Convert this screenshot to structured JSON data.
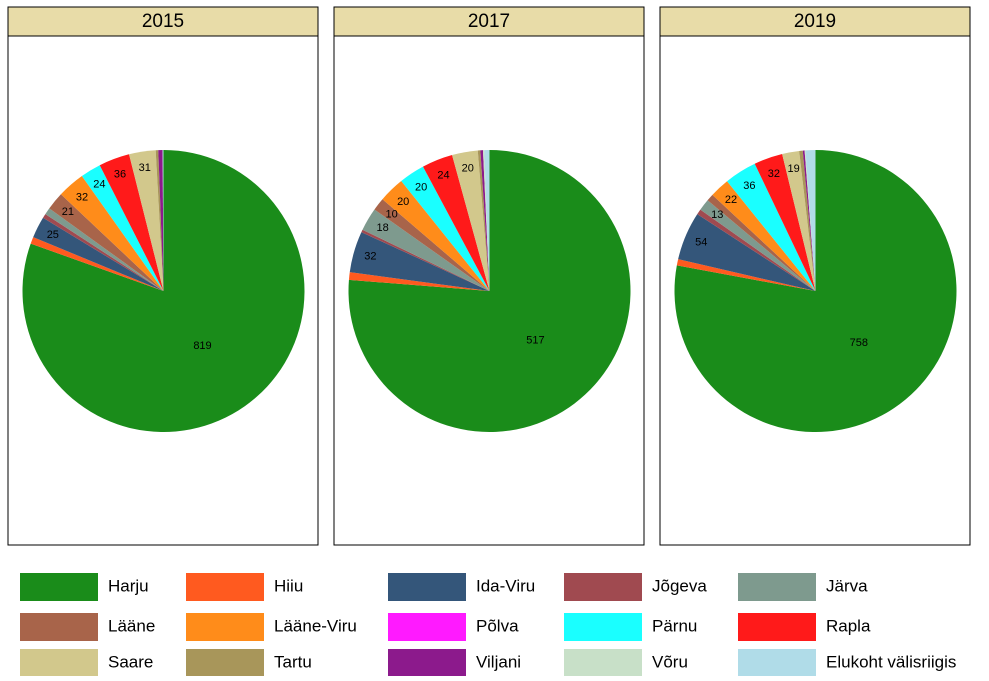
{
  "chart_data": [
    {
      "type": "pie",
      "title": "2015",
      "categories": [
        "Harju",
        "Hiiu",
        "Ida-Viru",
        "Jõgeva",
        "Järva",
        "Lääne",
        "Lääne-Viru",
        "Põlva",
        "Pärnu",
        "Rapla",
        "Saare",
        "Tartu",
        "Viljani",
        "Võru",
        "Elukoht välisriigis"
      ],
      "values": [
        819,
        8,
        25,
        5,
        8,
        21,
        32,
        0,
        24,
        36,
        31,
        3,
        5,
        0,
        1
      ],
      "value_labels": [
        "819",
        null,
        "25",
        null,
        null,
        "21",
        "32",
        null,
        "24",
        "36",
        "31",
        null,
        null,
        null,
        null
      ],
      "colors": [
        "#1a8c1a",
        "#ff5a1f",
        "#34567a",
        "#a04a50",
        "#7e9a8e",
        "#a8644a",
        "#ff8c1a",
        "#ff1aff",
        "#1affff",
        "#ff1a1a",
        "#d2c88c",
        "#a8965a",
        "#8c1a8c",
        "#c8e0c8",
        "#b0dce8"
      ]
    },
    {
      "type": "pie",
      "title": "2017",
      "categories": [
        "Harju",
        "Hiiu",
        "Ida-Viru",
        "Jõgeva",
        "Järva",
        "Lääne",
        "Lääne-Viru",
        "Põlva",
        "Pärnu",
        "Rapla",
        "Saare",
        "Tartu",
        "Viljani",
        "Võru",
        "Elukoht välisriigis"
      ],
      "values": [
        517,
        6,
        32,
        2,
        18,
        10,
        20,
        0,
        20,
        24,
        20,
        2,
        2,
        1,
        4
      ],
      "value_labels": [
        "517",
        null,
        "32",
        null,
        "18",
        "10",
        "20",
        null,
        "20",
        "24",
        "20",
        null,
        null,
        null,
        null
      ],
      "colors": [
        "#1a8c1a",
        "#ff5a1f",
        "#34567a",
        "#a04a50",
        "#7e9a8e",
        "#a8644a",
        "#ff8c1a",
        "#ff1aff",
        "#1affff",
        "#ff1a1a",
        "#d2c88c",
        "#a8965a",
        "#8c1a8c",
        "#c8e0c8",
        "#b0dce8"
      ]
    },
    {
      "type": "pie",
      "title": "2019",
      "categories": [
        "Harju",
        "Hiiu",
        "Ida-Viru",
        "Jõgeva",
        "Järva",
        "Lääne",
        "Lääne-Viru",
        "Põlva",
        "Pärnu",
        "Rapla",
        "Saare",
        "Tartu",
        "Viljani",
        "Võru",
        "Elukoht välisriigis"
      ],
      "values": [
        758,
        7,
        54,
        6,
        13,
        8,
        22,
        0,
        36,
        32,
        19,
        4,
        2,
        1,
        11
      ],
      "value_labels": [
        "758",
        null,
        "54",
        null,
        "13",
        null,
        "22",
        null,
        "36",
        "32",
        "19",
        null,
        null,
        null,
        null
      ],
      "colors": [
        "#1a8c1a",
        "#ff5a1f",
        "#34567a",
        "#a04a50",
        "#7e9a8e",
        "#a8644a",
        "#ff8c1a",
        "#ff1aff",
        "#1affff",
        "#ff1a1a",
        "#d2c88c",
        "#a8965a",
        "#8c1a8c",
        "#c8e0c8",
        "#b0dce8"
      ]
    }
  ]
}
